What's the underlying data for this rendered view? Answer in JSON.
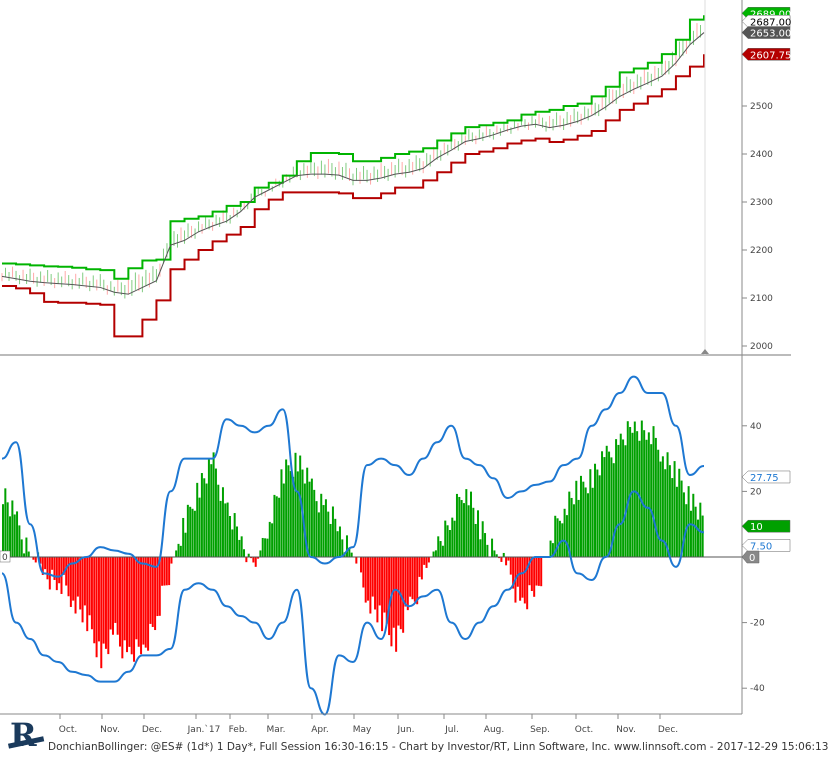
{
  "footer": {
    "caption": "DonchianBollinger: @ES# (1d*) 1 Day*, Full Session 16:30-16:15 - Chart by Investor/RT, Linn Software, Inc. www.linnsoft.com - 2017-12-29 15:06:13"
  },
  "logo": {
    "letter": "R"
  },
  "colors": {
    "upper": "#00b400",
    "lower": "#b40000",
    "mid": "#555555",
    "histo_pos": "#00a000",
    "histo_neg": "#ff0000",
    "band": "#1e78d2",
    "candle_up": "#2eaa2e",
    "candle_down": "#ff7070"
  },
  "x_axis": {
    "labels": [
      "Oct.",
      "Nov.",
      "Dec.",
      "Jan.`17",
      "Feb.",
      "Mar.",
      "Apr.",
      "May",
      "Jun.",
      "Jul.",
      "Aug.",
      "Sep.",
      "Oct.",
      "Nov.",
      "Dec."
    ]
  },
  "chart_data": [
    {
      "type": "line",
      "name": "price-donchian",
      "ylim": [
        1975,
        2700
      ],
      "yticks": [
        "2000",
        "2100",
        "2200",
        "2300",
        "2400",
        "2500"
      ],
      "last_values": {
        "upper": "2689.00",
        "close": "2687.00",
        "mid": "2653.00",
        "lower": "2607.75"
      },
      "series": [
        {
          "key": "upper",
          "values": [
            2172,
            2170,
            2168,
            2166,
            2165,
            2163,
            2160,
            2158,
            2140,
            2162,
            2178,
            2180,
            2260,
            2265,
            2270,
            2280,
            2292,
            2300,
            2330,
            2340,
            2355,
            2385,
            2402,
            2402,
            2400,
            2385,
            2385,
            2392,
            2400,
            2405,
            2412,
            2428,
            2443,
            2456,
            2460,
            2465,
            2470,
            2482,
            2488,
            2492,
            2500,
            2505,
            2520,
            2540,
            2570,
            2578,
            2590,
            2608,
            2638,
            2680,
            2689
          ]
        },
        {
          "key": "mid",
          "values": [
            2145,
            2140,
            2135,
            2132,
            2130,
            2128,
            2125,
            2122,
            2112,
            2108,
            2122,
            2136,
            2210,
            2220,
            2238,
            2250,
            2260,
            2280,
            2310,
            2325,
            2340,
            2355,
            2358,
            2358,
            2356,
            2345,
            2345,
            2350,
            2358,
            2362,
            2370,
            2392,
            2408,
            2426,
            2432,
            2440,
            2450,
            2458,
            2462,
            2455,
            2460,
            2468,
            2480,
            2498,
            2520,
            2535,
            2548,
            2562,
            2590,
            2628,
            2653
          ]
        },
        {
          "key": "lower",
          "values": [
            2125,
            2120,
            2110,
            2092,
            2090,
            2090,
            2088,
            2086,
            2020,
            2020,
            2055,
            2095,
            2160,
            2180,
            2200,
            2218,
            2232,
            2248,
            2285,
            2305,
            2320,
            2320,
            2320,
            2320,
            2318,
            2308,
            2308,
            2318,
            2330,
            2330,
            2345,
            2362,
            2382,
            2400,
            2405,
            2412,
            2422,
            2428,
            2432,
            2425,
            2430,
            2438,
            2448,
            2470,
            2492,
            2505,
            2520,
            2535,
            2562,
            2582,
            2607.75
          ]
        }
      ]
    },
    {
      "type": "bar",
      "name": "donchian-bollinger-oscillator",
      "ylim": [
        -50,
        60
      ],
      "yticks": [
        "-40",
        "-20",
        "0",
        "20",
        "40"
      ],
      "zero_label": "0",
      "last_values": {
        "upper_band": "27.75",
        "histogram": "10",
        "lower_band": "7.50"
      },
      "series": [
        {
          "key": "histogram",
          "values": [
            20,
            10,
            0,
            -5,
            -8,
            -12,
            -20,
            -30,
            -24,
            -30,
            -28,
            -18,
            -2,
            10,
            22,
            28,
            14,
            5,
            -3,
            12,
            25,
            30,
            20,
            15,
            8,
            0,
            -12,
            -20,
            -25,
            -16,
            -5,
            5,
            12,
            22,
            8,
            2,
            -5,
            -15,
            -10,
            5,
            16,
            20,
            25,
            30,
            35,
            40,
            38,
            32,
            24,
            18,
            10
          ]
        },
        {
          "key": "upper_band",
          "values": [
            30,
            35,
            10,
            -5,
            -6,
            -2,
            0,
            3,
            2,
            1,
            -2,
            -3,
            20,
            30,
            30,
            30,
            42,
            40,
            38,
            40,
            45,
            20,
            0,
            -2,
            0,
            3,
            28,
            30,
            28,
            25,
            30,
            35,
            40,
            30,
            28,
            24,
            18,
            20,
            22,
            23,
            28,
            30,
            40,
            45,
            50,
            55,
            50,
            50,
            40,
            25,
            27.75
          ]
        },
        {
          "key": "lower_band",
          "values": [
            -5,
            -20,
            -25,
            -30,
            -32,
            -35,
            -36,
            -38,
            -38,
            -35,
            -30,
            -30,
            -28,
            -10,
            -8,
            -10,
            -15,
            -18,
            -20,
            -25,
            -20,
            -10,
            -40,
            -48,
            -30,
            -32,
            -20,
            -25,
            -10,
            -15,
            -12,
            -10,
            -20,
            -25,
            -20,
            -15,
            -10,
            -5,
            0,
            0,
            5,
            -5,
            -7,
            0,
            10,
            20,
            15,
            5,
            -3,
            10,
            7.5
          ]
        }
      ]
    }
  ]
}
